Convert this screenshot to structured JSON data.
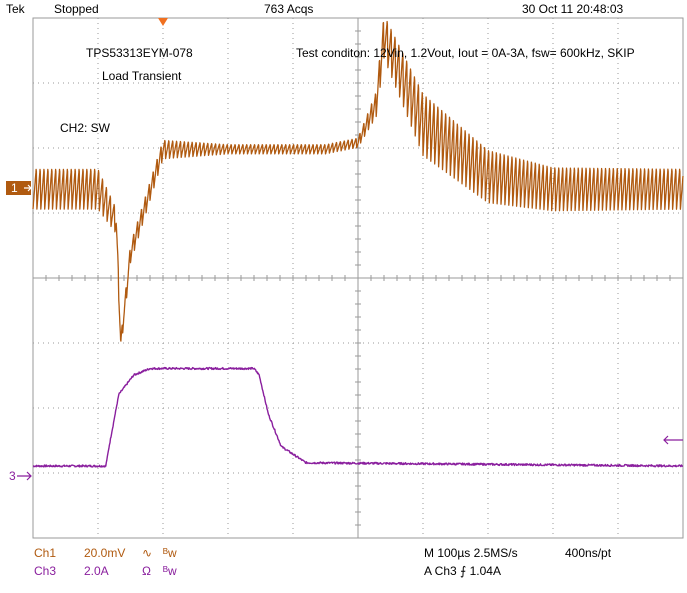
{
  "header": {
    "brand": "Tek",
    "run_state": "Stopped",
    "acquisitions": "763 Acqs",
    "datetime": "30 Oct 11 20:48:03"
  },
  "annotations": {
    "part_number": "TPS53313EYM-078",
    "test_name": "Load Transient",
    "condition": "Test conditon: 12Vin, 1.2Vout, Iout = 0A-3A, fsw= 600kHz, SKIP",
    "ch2_label": "CH2: SW"
  },
  "markers": {
    "ch1": "1",
    "ch3": "3"
  },
  "readout": {
    "ch1_name": "Ch1",
    "ch1_scale": "20.0mV",
    "ch1_coupling": "∿",
    "ch1_bw": "ᴮw",
    "ch3_name": "Ch3",
    "ch3_scale": "2.0A",
    "ch3_coupling": "Ω",
    "ch3_bw": "ᴮw",
    "timebase": "M 100µs 2.5MS/s",
    "record": "400ns/pt",
    "trigger": "A  Ch3  ⨍  1.04A"
  },
  "colors": {
    "ch1": "#b05a10",
    "ch3": "#8a1f9e",
    "grid": "#9a9a9a"
  },
  "chart_data": {
    "type": "line",
    "title": "",
    "grid": true,
    "x_divisions": 10,
    "y_divisions": 8,
    "x_unit": "µs",
    "x_per_div": 100,
    "series": [
      {
        "name": "Ch1",
        "unit": "mV",
        "per_div": 20.0,
        "x": [
          0,
          100,
          128,
          135,
          150,
          200,
          300,
          450,
          500,
          528,
          540,
          600,
          700,
          800,
          1000
        ],
        "y": [
          0,
          0,
          -10,
          -48,
          -20,
          12,
          12,
          12,
          14,
          26,
          47,
          20,
          4,
          0,
          0
        ],
        "ripple_pp": [
          13,
          13,
          8,
          4,
          6,
          6,
          3,
          3,
          3,
          8,
          14,
          20,
          17,
          14,
          13
        ]
      },
      {
        "name": "Ch3",
        "unit": "A",
        "per_div": 2.0,
        "x": [
          0,
          112,
          118,
          132,
          155,
          180,
          340,
          348,
          362,
          382,
          420,
          1000
        ],
        "y": [
          0,
          0,
          0.7,
          2.2,
          2.8,
          3.0,
          3.0,
          2.8,
          1.6,
          0.6,
          0.1,
          0
        ]
      }
    ]
  }
}
